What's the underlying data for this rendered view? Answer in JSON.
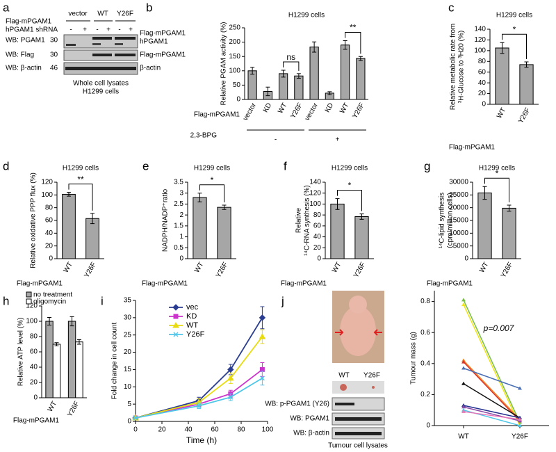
{
  "western_blot": {
    "panel": "a",
    "sample_row_label": "Flag-mPGAM1",
    "samples": [
      "vector",
      "WT",
      "Y26F"
    ],
    "shrna_label": "hPGAM1 shRNA",
    "shrna": [
      "-",
      "+",
      "-",
      "+",
      "-",
      "+"
    ],
    "rows": [
      {
        "label": "WB: PGAM1",
        "mw": "30"
      },
      {
        "label": "WB: Flag",
        "mw": "30"
      },
      {
        "label": "WB: β-actin",
        "mw": "46"
      }
    ],
    "band_labels": [
      "Flag-mPGAM1",
      "hPGAM1",
      "Flag-mPGAM1",
      "β-actin"
    ],
    "caption": [
      "Whole cell lysates",
      "H1299 cells"
    ]
  },
  "xenograft": {
    "panel": "j",
    "groups": [
      "WT",
      "Y26F"
    ],
    "blots": [
      "WB: p-PGAM1 (Y26)",
      "WB: PGAM1",
      "WB: β-actin"
    ],
    "caption": "Tumour cell lysates"
  },
  "chart_data": [
    {
      "type": "bar",
      "panel": "b",
      "title": "H1299 cells",
      "ylabel": "Relative PGAM activity (%)",
      "xlabel": "Flag-mPGAM1",
      "categories": [
        "vector",
        "KD",
        "WT",
        "Y26F",
        "vector",
        "KD",
        "WT",
        "Y26F"
      ],
      "values": [
        100,
        28,
        90,
        82,
        183,
        22,
        190,
        143
      ],
      "errors": [
        12,
        15,
        12,
        8,
        18,
        5,
        15,
        7
      ],
      "color": "#a6a6a6",
      "ylim": [
        0,
        250
      ],
      "yticks": [
        0,
        50,
        100,
        150,
        200,
        250
      ],
      "annotations": [
        "ns",
        "**"
      ],
      "group_label": "2,3-BPG",
      "groups": [
        "-",
        "+"
      ]
    },
    {
      "type": "bar",
      "panel": "c",
      "title": "H1299 cells",
      "ylabel": [
        "Relative metabolic rate from",
        "³H-Glucose to ³H20 (%)"
      ],
      "xlabel": "Flag-mPGAM1",
      "categories": [
        "WT",
        "Y26F"
      ],
      "values": [
        105,
        74
      ],
      "errors": [
        10,
        5
      ],
      "color": "#a6a6a6",
      "ylim": [
        0,
        140
      ],
      "yticks": [
        0,
        20,
        40,
        60,
        80,
        100,
        120,
        140
      ],
      "annotations": [
        "*"
      ]
    },
    {
      "type": "bar",
      "panel": "d",
      "title": "H1299 cells",
      "ylabel": "Relative oxidative PPP flux (%)",
      "xlabel": "Flag-mPGAM1",
      "categories": [
        "WT",
        "Y26F"
      ],
      "values": [
        101,
        63
      ],
      "errors": [
        3,
        8
      ],
      "color": "#a6a6a6",
      "ylim": [
        0,
        120
      ],
      "yticks": [
        0,
        20,
        40,
        60,
        80,
        100,
        120
      ],
      "annotations": [
        "**"
      ]
    },
    {
      "type": "bar",
      "panel": "e",
      "title": "H1299 cells",
      "ylabel": "NADPH/NADP⁺ratio",
      "xlabel": "Flag-mPGAM1",
      "categories": [
        "WT",
        "Y26F"
      ],
      "values": [
        2.8,
        2.35
      ],
      "errors": [
        0.2,
        0.1
      ],
      "color": "#a6a6a6",
      "ylim": [
        0,
        3.5
      ],
      "yticks": [
        0,
        0.5,
        1,
        1.5,
        2,
        2.5,
        3,
        3.5
      ],
      "annotations": [
        "*"
      ]
    },
    {
      "type": "bar",
      "panel": "f",
      "title": "H1299 cells",
      "ylabel": [
        "Relative",
        "¹⁴C-RNA synthesis (%)"
      ],
      "xlabel": "Flag-mPGAM1",
      "categories": [
        "WT",
        "Y26F"
      ],
      "values": [
        100,
        77
      ],
      "errors": [
        10,
        5
      ],
      "color": "#a6a6a6",
      "ylim": [
        0,
        140
      ],
      "yticks": [
        0,
        20,
        40,
        60,
        80,
        100,
        120,
        140
      ],
      "annotations": [
        "*"
      ]
    },
    {
      "type": "bar",
      "panel": "g",
      "title": "H1299 cells",
      "ylabel": [
        "¹⁴C-lipid synthesis",
        "(cpm/million cells)"
      ],
      "xlabel": "Flag-mPGAM1",
      "categories": [
        "WT",
        "Y26F"
      ],
      "values": [
        25800,
        19800
      ],
      "errors": [
        2500,
        1200
      ],
      "color": "#a6a6a6",
      "ylim": [
        0,
        30000
      ],
      "yticks": [
        0,
        5000,
        10000,
        15000,
        20000,
        25000,
        30000
      ],
      "annotations": [
        "*"
      ]
    },
    {
      "type": "bar",
      "panel": "h",
      "ylabel": "Relative ATP level (%)",
      "xlabel": "Flag-mPGAM1",
      "categories": [
        "WT",
        "Y26F"
      ],
      "series": [
        {
          "name": "no treatment",
          "color": "#a6a6a6",
          "values": [
            100,
            100
          ],
          "errors": [
            5,
            6
          ]
        },
        {
          "name": "oligomycin",
          "color": "#ffffff",
          "values": [
            70,
            73
          ],
          "errors": [
            2,
            3
          ]
        }
      ],
      "ylim": [
        0,
        120
      ],
      "yticks": [
        0,
        20,
        40,
        60,
        80,
        100,
        120
      ],
      "legend": "top-left"
    },
    {
      "type": "line",
      "panel": "i",
      "xlabel": "Time (h)",
      "ylabel": "Fold change in cell count",
      "x": [
        0,
        48,
        72,
        96
      ],
      "series": [
        {
          "name": "vec",
          "color": "#2b3d91",
          "marker": "diamond",
          "values": [
            1,
            6,
            15,
            30
          ],
          "errors": [
            0.3,
            1,
            1.5,
            3.2
          ]
        },
        {
          "name": "KD",
          "color": "#cc33cc",
          "marker": "square",
          "values": [
            1,
            5,
            8,
            15
          ],
          "errors": [
            0.2,
            0.8,
            1,
            2
          ]
        },
        {
          "name": "WT",
          "color": "#e8dc10",
          "marker": "triangle",
          "values": [
            1,
            5.5,
            12.5,
            24.5
          ],
          "errors": [
            0.2,
            1,
            1.5,
            2
          ]
        },
        {
          "name": "Y26F",
          "color": "#4fc6e8",
          "marker": "cross",
          "values": [
            1,
            4.5,
            7,
            12.5
          ],
          "errors": [
            0.2,
            0.8,
            1,
            2
          ]
        }
      ],
      "xlim": [
        0,
        100
      ],
      "xticks": [
        0,
        20,
        40,
        60,
        80,
        100
      ],
      "ylim": [
        0,
        35
      ],
      "yticks": [
        0,
        5,
        10,
        15,
        20,
        25,
        30,
        35
      ],
      "legend": "top-left"
    },
    {
      "type": "paired",
      "ylabel": "Tumour mass (g)",
      "categories": [
        "WT",
        "Y26F"
      ],
      "annotation": "p=0.007",
      "series": [
        {
          "color": "#77c043",
          "values": [
            0.81,
            0.02
          ]
        },
        {
          "color": "#f2e41b",
          "values": [
            0.78,
            0.0
          ]
        },
        {
          "color": "#f08a24",
          "values": [
            0.42,
            0.04
          ]
        },
        {
          "color": "#d9342b",
          "values": [
            0.41,
            0.03
          ]
        },
        {
          "color": "#4a6fb5",
          "values": [
            0.37,
            0.24
          ]
        },
        {
          "color": "#111111",
          "values": [
            0.27,
            0.05
          ]
        },
        {
          "color": "#24318f",
          "values": [
            0.13,
            0.05
          ]
        },
        {
          "color": "#8a4aa8",
          "values": [
            0.12,
            0.03
          ]
        },
        {
          "color": "#4fc6e8",
          "values": [
            0.1,
            0.0
          ]
        },
        {
          "color": "#e875b8",
          "values": [
            0.09,
            0.04
          ]
        }
      ],
      "ylim": [
        0,
        0.87
      ],
      "yticks": [
        0,
        0.2,
        0.4,
        0.6,
        0.8
      ]
    }
  ]
}
